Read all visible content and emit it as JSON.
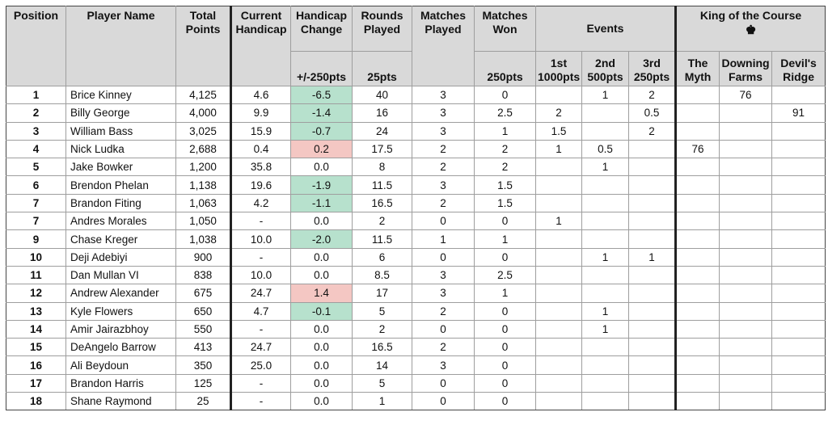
{
  "headers": {
    "position": "Position",
    "player_name": "Player Name",
    "total_points": "Total Points",
    "current_handicap": "Current Handicap",
    "handicap_change": "Handicap Change",
    "handicap_change_pts": "+/-250pts",
    "rounds_played": "Rounds Played",
    "rounds_played_pts": "25pts",
    "matches_played": "Matches Played",
    "matches_won": "Matches Won",
    "matches_won_pts": "250pts",
    "events": "Events",
    "event_1st": "1st",
    "event_1st_pts": "1000pts",
    "event_2nd": "2nd",
    "event_2nd_pts": "500pts",
    "event_3rd": "3rd",
    "event_3rd_pts": "250pts",
    "king": "King of the Course",
    "king_icon": "crown-icon",
    "course_1a": "The",
    "course_1b": "Myth",
    "course_2a": "Downing",
    "course_2b": "Farms",
    "course_3a": "Devil's",
    "course_3b": "Ridge"
  },
  "colors": {
    "improved": "#b7e1cd",
    "worsened": "#f4c7c3",
    "header": "#d9d9d9"
  },
  "rows": [
    {
      "pos": "1",
      "name": "Brice Kinney",
      "total": "4,125",
      "hcp": "4.6",
      "chg": "-6.5",
      "chg_state": "green",
      "rounds": "40",
      "mp": "3",
      "mw": "0",
      "e1": "",
      "e2": "1",
      "e3": "2",
      "myth": "",
      "downing": "76",
      "devils": ""
    },
    {
      "pos": "2",
      "name": "Billy George",
      "total": "4,000",
      "hcp": "9.9",
      "chg": "-1.4",
      "chg_state": "green",
      "rounds": "16",
      "mp": "3",
      "mw": "2.5",
      "e1": "2",
      "e2": "",
      "e3": "0.5",
      "myth": "",
      "downing": "",
      "devils": "91"
    },
    {
      "pos": "3",
      "name": "William Bass",
      "total": "3,025",
      "hcp": "15.9",
      "chg": "-0.7",
      "chg_state": "green",
      "rounds": "24",
      "mp": "3",
      "mw": "1",
      "e1": "1.5",
      "e2": "",
      "e3": "2",
      "myth": "",
      "downing": "",
      "devils": ""
    },
    {
      "pos": "4",
      "name": "Nick Ludka",
      "total": "2,688",
      "hcp": "0.4",
      "chg": "0.2",
      "chg_state": "red",
      "rounds": "17.5",
      "mp": "2",
      "mw": "2",
      "e1": "1",
      "e2": "0.5",
      "e3": "",
      "myth": "76",
      "downing": "",
      "devils": ""
    },
    {
      "pos": "5",
      "name": "Jake Bowker",
      "total": "1,200",
      "hcp": "35.8",
      "chg": "0.0",
      "chg_state": "",
      "rounds": "8",
      "mp": "2",
      "mw": "2",
      "e1": "",
      "e2": "1",
      "e3": "",
      "myth": "",
      "downing": "",
      "devils": ""
    },
    {
      "pos": "6",
      "name": "Brendon Phelan",
      "total": "1,138",
      "hcp": "19.6",
      "chg": "-1.9",
      "chg_state": "green",
      "rounds": "11.5",
      "mp": "3",
      "mw": "1.5",
      "e1": "",
      "e2": "",
      "e3": "",
      "myth": "",
      "downing": "",
      "devils": ""
    },
    {
      "pos": "7",
      "name": "Brandon Fiting",
      "total": "1,063",
      "hcp": "4.2",
      "chg": "-1.1",
      "chg_state": "green",
      "rounds": "16.5",
      "mp": "2",
      "mw": "1.5",
      "e1": "",
      "e2": "",
      "e3": "",
      "myth": "",
      "downing": "",
      "devils": ""
    },
    {
      "pos": "7",
      "name": "Andres Morales",
      "total": "1,050",
      "hcp": "-",
      "chg": "0.0",
      "chg_state": "",
      "rounds": "2",
      "mp": "0",
      "mw": "0",
      "e1": "1",
      "e2": "",
      "e3": "",
      "myth": "",
      "downing": "",
      "devils": ""
    },
    {
      "pos": "9",
      "name": "Chase Kreger",
      "total": "1,038",
      "hcp": "10.0",
      "chg": "-2.0",
      "chg_state": "green",
      "rounds": "11.5",
      "mp": "1",
      "mw": "1",
      "e1": "",
      "e2": "",
      "e3": "",
      "myth": "",
      "downing": "",
      "devils": ""
    },
    {
      "pos": "10",
      "name": "Deji Adebiyi",
      "total": "900",
      "hcp": "-",
      "chg": "0.0",
      "chg_state": "",
      "rounds": "6",
      "mp": "0",
      "mw": "0",
      "e1": "",
      "e2": "1",
      "e3": "1",
      "myth": "",
      "downing": "",
      "devils": ""
    },
    {
      "pos": "11",
      "name": "Dan Mullan VI",
      "total": "838",
      "hcp": "10.0",
      "chg": "0.0",
      "chg_state": "",
      "rounds": "8.5",
      "mp": "3",
      "mw": "2.5",
      "e1": "",
      "e2": "",
      "e3": "",
      "myth": "",
      "downing": "",
      "devils": ""
    },
    {
      "pos": "12",
      "name": "Andrew Alexander",
      "total": "675",
      "hcp": "24.7",
      "chg": "1.4",
      "chg_state": "red",
      "rounds": "17",
      "mp": "3",
      "mw": "1",
      "e1": "",
      "e2": "",
      "e3": "",
      "myth": "",
      "downing": "",
      "devils": ""
    },
    {
      "pos": "13",
      "name": "Kyle Flowers",
      "total": "650",
      "hcp": "4.7",
      "chg": "-0.1",
      "chg_state": "green",
      "rounds": "5",
      "mp": "2",
      "mw": "0",
      "e1": "",
      "e2": "1",
      "e3": "",
      "myth": "",
      "downing": "",
      "devils": ""
    },
    {
      "pos": "14",
      "name": "Amir Jairazbhoy",
      "total": "550",
      "hcp": "-",
      "chg": "0.0",
      "chg_state": "",
      "rounds": "2",
      "mp": "0",
      "mw": "0",
      "e1": "",
      "e2": "1",
      "e3": "",
      "myth": "",
      "downing": "",
      "devils": ""
    },
    {
      "pos": "15",
      "name": "DeAngelo Barrow",
      "total": "413",
      "hcp": "24.7",
      "chg": "0.0",
      "chg_state": "",
      "rounds": "16.5",
      "mp": "2",
      "mw": "0",
      "e1": "",
      "e2": "",
      "e3": "",
      "myth": "",
      "downing": "",
      "devils": ""
    },
    {
      "pos": "16",
      "name": "Ali Beydoun",
      "total": "350",
      "hcp": "25.0",
      "chg": "0.0",
      "chg_state": "",
      "rounds": "14",
      "mp": "3",
      "mw": "0",
      "e1": "",
      "e2": "",
      "e3": "",
      "myth": "",
      "downing": "",
      "devils": ""
    },
    {
      "pos": "17",
      "name": "Brandon Harris",
      "total": "125",
      "hcp": "-",
      "chg": "0.0",
      "chg_state": "",
      "rounds": "5",
      "mp": "0",
      "mw": "0",
      "e1": "",
      "e2": "",
      "e3": "",
      "myth": "",
      "downing": "",
      "devils": ""
    },
    {
      "pos": "18",
      "name": "Shane Raymond",
      "total": "25",
      "hcp": "-",
      "chg": "0.0",
      "chg_state": "",
      "rounds": "1",
      "mp": "0",
      "mw": "0",
      "e1": "",
      "e2": "",
      "e3": "",
      "myth": "",
      "downing": "",
      "devils": ""
    }
  ]
}
